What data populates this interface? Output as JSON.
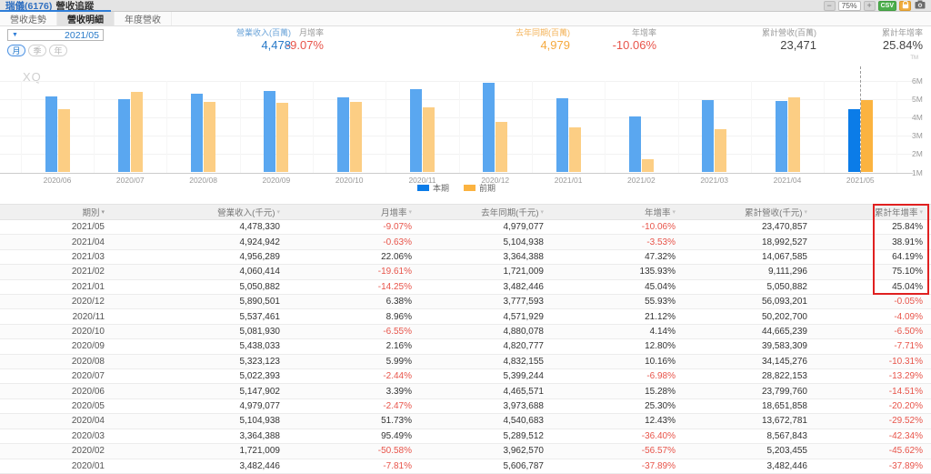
{
  "titlebar": {
    "stock_title": "瑞儀(6176)",
    "page_title": "營收追蹤",
    "zoom_out_label": "−",
    "zoom_level": "75%",
    "zoom_in_label": "+",
    "csv_label": "CSV",
    "icons": [
      "minus-icon",
      "plus-icon",
      "lock-icon",
      "camera-icon"
    ]
  },
  "tabs": [
    {
      "label": "營收走勢",
      "active": false
    },
    {
      "label": "營收明細",
      "active": true
    },
    {
      "label": "年度營收",
      "active": false
    }
  ],
  "controls": {
    "dropdown_arrow": "▼",
    "dropdown_value": "2021/05",
    "period_buttons": [
      {
        "label": "月",
        "active": true
      },
      {
        "label": "季",
        "active": false
      },
      {
        "label": "年",
        "active": false
      }
    ]
  },
  "summary": [
    {
      "label": "營業收入(百萬)",
      "value": "4,478",
      "label_color": "#6aa3d8",
      "value_color": "#2779c8"
    },
    {
      "label": "月增率",
      "value": "-9.07%",
      "label_color": "#999999",
      "value_color": "#e8544a"
    },
    {
      "label": "去年同期(百萬)",
      "value": "4,979",
      "label_color": "#f3b257",
      "value_color": "#f5a93e"
    },
    {
      "label": "年增率",
      "value": "-10.06%",
      "label_color": "#999999",
      "value_color": "#e8544a"
    },
    {
      "label": "累計營收(百萬)",
      "value": "23,471",
      "label_color": "#999999",
      "value_color": "#444444"
    },
    {
      "label": "累計年增率",
      "value": "25.84%",
      "label_color": "#999999",
      "value_color": "#444444"
    }
  ],
  "trademark": "TM",
  "watermark": "XQ",
  "chart_data": {
    "type": "bar",
    "categories": [
      "2020/06",
      "2020/07",
      "2020/08",
      "2020/09",
      "2020/10",
      "2020/11",
      "2020/12",
      "2021/01",
      "2021/02",
      "2021/03",
      "2021/04",
      "2021/05"
    ],
    "series": [
      {
        "name": "本期",
        "color": "#5aa7f0",
        "color_active": "#0b7ce8",
        "values": [
          5147902,
          5022393,
          5323123,
          5438033,
          5081930,
          5537461,
          5890501,
          5050882,
          4060414,
          4956289,
          4924942,
          4478330
        ]
      },
      {
        "name": "前期",
        "color": "#fcce84",
        "color_active": "#fbb340",
        "values": [
          4465571,
          5399244,
          4832155,
          4820777,
          4880078,
          4571929,
          3777593,
          3482446,
          1721009,
          3364388,
          5104938,
          4979077
        ]
      }
    ],
    "unit": "千元",
    "yticks": [
      "6M",
      "5M",
      "4M",
      "3M",
      "2M",
      "1M"
    ],
    "ymin": 1000000,
    "ymax": 6000000,
    "grid": true,
    "legend_position": "bottom",
    "highlight_index": 11,
    "title": "",
    "xlabel": "",
    "ylabel": ""
  },
  "table": {
    "columns": [
      "期別",
      "營業收入(千元)",
      "月增率",
      "去年同期(千元)",
      "年增率",
      "累計營收(千元)",
      "累計年增率"
    ],
    "sort_arrow": "▾",
    "rows": [
      [
        "2021/05",
        "4,478,330",
        "-9.07%",
        "4,979,077",
        "-10.06%",
        "23,470,857",
        "25.84%"
      ],
      [
        "2021/04",
        "4,924,942",
        "-0.63%",
        "5,104,938",
        "-3.53%",
        "18,992,527",
        "38.91%"
      ],
      [
        "2021/03",
        "4,956,289",
        "22.06%",
        "3,364,388",
        "47.32%",
        "14,067,585",
        "64.19%"
      ],
      [
        "2021/02",
        "4,060,414",
        "-19.61%",
        "1,721,009",
        "135.93%",
        "9,111,296",
        "75.10%"
      ],
      [
        "2021/01",
        "5,050,882",
        "-14.25%",
        "3,482,446",
        "45.04%",
        "5,050,882",
        "45.04%"
      ],
      [
        "2020/12",
        "5,890,501",
        "6.38%",
        "3,777,593",
        "55.93%",
        "56,093,201",
        "-0.05%"
      ],
      [
        "2020/11",
        "5,537,461",
        "8.96%",
        "4,571,929",
        "21.12%",
        "50,202,700",
        "-4.09%"
      ],
      [
        "2020/10",
        "5,081,930",
        "-6.55%",
        "4,880,078",
        "4.14%",
        "44,665,239",
        "-6.50%"
      ],
      [
        "2020/09",
        "5,438,033",
        "2.16%",
        "4,820,777",
        "12.80%",
        "39,583,309",
        "-7.71%"
      ],
      [
        "2020/08",
        "5,323,123",
        "5.99%",
        "4,832,155",
        "10.16%",
        "34,145,276",
        "-10.31%"
      ],
      [
        "2020/07",
        "5,022,393",
        "-2.44%",
        "5,399,244",
        "-6.98%",
        "28,822,153",
        "-13.29%"
      ],
      [
        "2020/06",
        "5,147,902",
        "3.39%",
        "4,465,571",
        "15.28%",
        "23,799,760",
        "-14.51%"
      ],
      [
        "2020/05",
        "4,979,077",
        "-2.47%",
        "3,973,688",
        "25.30%",
        "18,651,858",
        "-20.20%"
      ],
      [
        "2020/04",
        "5,104,938",
        "51.73%",
        "4,540,683",
        "12.43%",
        "13,672,781",
        "-29.52%"
      ],
      [
        "2020/03",
        "3,364,388",
        "95.49%",
        "5,289,512",
        "-36.40%",
        "8,567,843",
        "-42.34%"
      ],
      [
        "2020/02",
        "1,721,009",
        "-50.58%",
        "3,962,570",
        "-56.57%",
        "5,203,455",
        "-45.62%"
      ],
      [
        "2020/01",
        "3,482,446",
        "-7.81%",
        "5,606,787",
        "-37.89%",
        "3,482,446",
        "-37.89%"
      ]
    ],
    "highlight": {
      "column": "累計年增率",
      "row_periods": [
        "2021/05",
        "2021/04",
        "2021/03",
        "2021/02",
        "2021/01"
      ],
      "color": "#e02020"
    }
  },
  "colors": {
    "negative_red": "#e8544a",
    "bar_current": "#5aa7f0",
    "bar_current_active": "#0b7ce8",
    "bar_previous": "#fcce84",
    "bar_previous_active": "#fbb340",
    "accent_blue": "#2779c8"
  }
}
